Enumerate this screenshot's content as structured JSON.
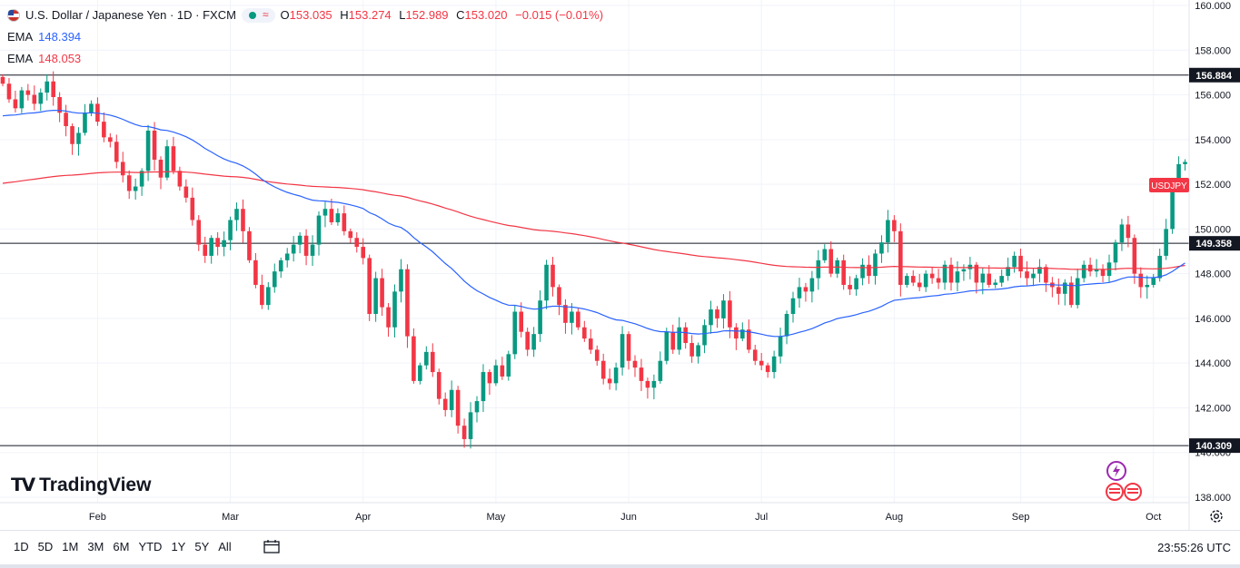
{
  "header": {
    "title": "U.S. Dollar / Japanese Yen · 1D · FXCM",
    "open_label": "O",
    "open": "153.035",
    "high_label": "H",
    "high": "153.274",
    "low_label": "L",
    "low": "152.989",
    "close_label": "C",
    "close": "153.020",
    "change": "−0.015 (−0.01%)",
    "ema1_label": "EMA",
    "ema1_value": "148.394",
    "ema2_label": "EMA",
    "ema2_value": "148.053"
  },
  "bottom_bar": {
    "ranges": [
      "1D",
      "5D",
      "1M",
      "3M",
      "6M",
      "YTD",
      "1Y",
      "5Y",
      "All"
    ],
    "clock": "23:55:26 UTC"
  },
  "logo": {
    "text": "TradingView"
  },
  "colors": {
    "up": "#089981",
    "down": "#f23645",
    "ema_fast": "#2962ff",
    "ema_slow": "#f23645",
    "level": "#131722"
  },
  "chart_data": {
    "type": "candlestick",
    "title": "U.S. Dollar / Japanese Yen · 1D · FXCM",
    "ylim": [
      137,
      161
    ],
    "y_ticks": [
      138,
      140,
      142,
      144,
      146,
      148,
      150,
      152,
      154,
      156,
      158,
      160
    ],
    "y_tick_labels": [
      "138.000",
      "140.000",
      "142.000",
      "144.000",
      "146.000",
      "148.000",
      "150.000",
      "152.000",
      "154.000",
      "156.000",
      "158.000",
      "160.000"
    ],
    "x_labels": [
      {
        "label": "Feb",
        "index": 15
      },
      {
        "label": "Mar",
        "index": 36
      },
      {
        "label": "Apr",
        "index": 57
      },
      {
        "label": "May",
        "index": 78
      },
      {
        "label": "Jun",
        "index": 99
      },
      {
        "label": "Jul",
        "index": 120
      },
      {
        "label": "Aug",
        "index": 141
      },
      {
        "label": "Sep",
        "index": 161
      },
      {
        "label": "Oct",
        "index": 182
      }
    ],
    "horizontal_levels": [
      {
        "value": 156.884,
        "label": "156.884"
      },
      {
        "value": 149.358,
        "label": "149.358"
      },
      {
        "value": 140.309,
        "label": "140.309"
      }
    ],
    "last_price_tag": {
      "label": "USDJPY",
      "value": 153.02
    },
    "closes": [
      156.5,
      155.8,
      155.4,
      156.2,
      156.0,
      155.6,
      156.1,
      156.6,
      155.9,
      155.2,
      154.6,
      153.8,
      154.3,
      155.2,
      155.6,
      154.8,
      154.1,
      153.9,
      153.0,
      152.4,
      151.7,
      151.9,
      152.6,
      154.4,
      153.1,
      152.3,
      153.7,
      152.6,
      151.9,
      151.4,
      150.4,
      149.3,
      148.8,
      149.6,
      149.2,
      149.5,
      150.4,
      150.9,
      149.9,
      148.6,
      147.5,
      146.6,
      147.4,
      148.1,
      148.6,
      148.9,
      149.3,
      149.7,
      148.8,
      149.3,
      150.6,
      150.9,
      150.3,
      150.7,
      149.9,
      149.6,
      149.2,
      148.7,
      146.2,
      147.8,
      146.5,
      145.6,
      147.2,
      148.2,
      145.2,
      143.2,
      143.9,
      144.5,
      143.6,
      142.4,
      141.9,
      142.8,
      141.2,
      140.6,
      141.8,
      142.3,
      143.6,
      143.1,
      143.9,
      143.4,
      144.4,
      146.3,
      145.4,
      144.6,
      145.3,
      146.8,
      148.4,
      147.4,
      146.6,
      145.8,
      146.3,
      145.6,
      145.1,
      144.6,
      144.1,
      143.3,
      143.1,
      143.8,
      145.3,
      144.1,
      143.8,
      143.2,
      142.9,
      143.2,
      144.1,
      145.4,
      144.6,
      145.6,
      144.9,
      144.3,
      144.8,
      145.7,
      146.4,
      146.0,
      146.8,
      145.6,
      145.1,
      145.5,
      144.6,
      144.1,
      143.9,
      143.6,
      144.3,
      145.2,
      146.2,
      146.9,
      147.4,
      147.2,
      147.8,
      148.6,
      149.1,
      148.0,
      148.6,
      147.5,
      147.3,
      147.8,
      148.4,
      147.9,
      148.9,
      149.4,
      150.4,
      149.9,
      147.5,
      147.9,
      147.6,
      147.4,
      148.0,
      147.8,
      147.6,
      148.4,
      147.6,
      148.1,
      148.2,
      148.4,
      147.6,
      148.0,
      147.5,
      147.6,
      147.9,
      148.3,
      148.8,
      148.1,
      147.8,
      148.0,
      148.3,
      147.6,
      147.4,
      147.1,
      147.6,
      146.6,
      147.8,
      148.4,
      148.1,
      148.2,
      147.9,
      148.5,
      149.4,
      150.2,
      149.6,
      148.0,
      147.4,
      147.5,
      147.8,
      148.8,
      150.0,
      152.0,
      152.9,
      153.0
    ]
  }
}
